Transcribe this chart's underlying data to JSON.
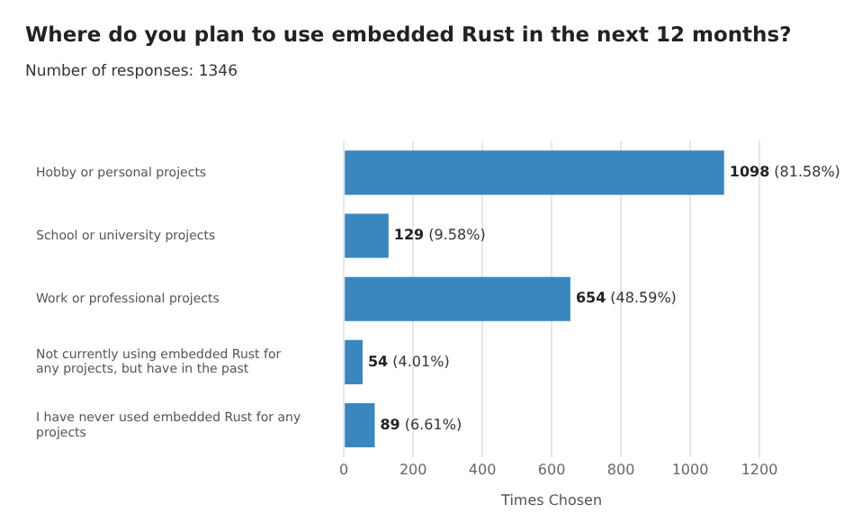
{
  "chart_data": {
    "type": "bar",
    "orientation": "horizontal",
    "title": "Where do you plan to use embedded Rust in the next 12 months?",
    "subtitle": "Number of responses: 1346",
    "xlabel": "Times Chosen",
    "categories": [
      "Hobby or personal projects",
      "School or university projects",
      "Work or professional projects",
      "Not currently using embedded Rust for any projects, but have in the past",
      "I have never used embedded Rust for any projects"
    ],
    "values": [
      1098,
      129,
      654,
      54,
      89
    ],
    "value_labels": [
      "1098 (81.58%)",
      "129 (9.58%)",
      "654 (48.59%)",
      "54 (4.01%)",
      "89 (6.61%)"
    ],
    "color": "#3a87c0",
    "xlim": [
      0,
      1200
    ],
    "xticks": [
      0,
      200,
      400,
      600,
      800,
      1000,
      1200
    ],
    "grid": "x",
    "legend": false
  }
}
